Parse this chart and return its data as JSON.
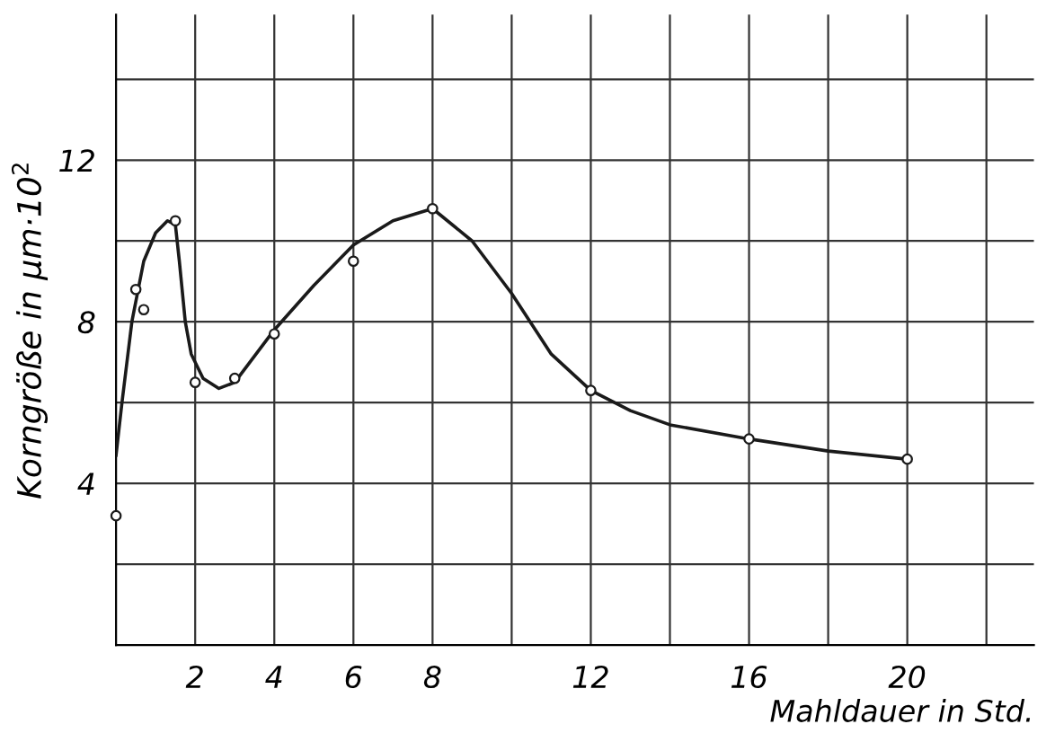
{
  "chart_data": {
    "type": "scatter",
    "xlabel": "Mahldauer in Std.",
    "ylabel": "Korngröße in µm·10$^{2}$",
    "xlim": [
      0,
      23.2
    ],
    "ylim": [
      0,
      15.6
    ],
    "xticks": [
      {
        "value": 2,
        "label": "2"
      },
      {
        "value": 4,
        "label": "4"
      },
      {
        "value": 6,
        "label": "6"
      },
      {
        "value": 8,
        "label": "8"
      },
      {
        "value": 10,
        "label": null
      },
      {
        "value": 12,
        "label": "12"
      },
      {
        "value": 14,
        "label": null
      },
      {
        "value": 16,
        "label": "16"
      },
      {
        "value": 18,
        "label": null
      },
      {
        "value": 20,
        "label": "20"
      },
      {
        "value": 22,
        "label": null
      }
    ],
    "yticks": [
      {
        "value": 2,
        "label": null
      },
      {
        "value": 4,
        "label": "4"
      },
      {
        "value": 6,
        "label": null
      },
      {
        "value": 8,
        "label": "8"
      },
      {
        "value": 10,
        "label": null
      },
      {
        "value": 12,
        "label": "12"
      },
      {
        "value": 14,
        "label": null
      }
    ],
    "grid": true,
    "legend": false,
    "series": [
      {
        "type": "line",
        "color": "#1a1a1a",
        "marker": "none",
        "line_style": "solid",
        "x": [
          0,
          0.15,
          0.4,
          0.7,
          1.0,
          1.3,
          1.5,
          1.6,
          1.75,
          1.9,
          2.2,
          2.6,
          3,
          4,
          5,
          6,
          7,
          8,
          9,
          10,
          11,
          12,
          13,
          14,
          16,
          18,
          20
        ],
        "values": [
          4.7,
          6,
          8,
          9.5,
          10.2,
          10.5,
          10.4,
          9.5,
          8,
          7.2,
          6.6,
          6.35,
          6.5,
          7.8,
          8.9,
          9.9,
          10.5,
          10.8,
          10,
          8.7,
          7.2,
          6.3,
          5.8,
          5.45,
          5.1,
          4.8,
          4.6
        ]
      },
      {
        "color": "#1a1a1a",
        "marker": "circle",
        "x": [
          0,
          0.5,
          0.7,
          1.5,
          2,
          3,
          4,
          6,
          8,
          12,
          16,
          20
        ],
        "values": [
          3.2,
          8.8,
          8.3,
          10.5,
          6.5,
          6.6,
          7.7,
          9.5,
          10.8,
          6.3,
          5.1,
          4.6
        ]
      }
    ]
  }
}
